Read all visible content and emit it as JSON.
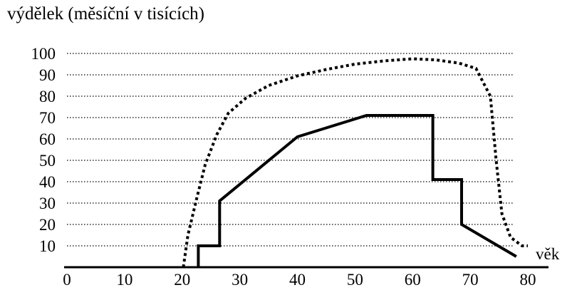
{
  "chart_data": {
    "type": "line",
    "title": "výdělek (měsíční v tisících)",
    "xlabel": "věk",
    "ylabel": "",
    "xlim": [
      0,
      80
    ],
    "ylim": [
      0,
      100
    ],
    "x_ticks": [
      "0",
      "10",
      "20",
      "30",
      "40",
      "50",
      "60",
      "70",
      "80"
    ],
    "y_ticks": [
      "10",
      "20",
      "30",
      "40",
      "50",
      "60",
      "70",
      "80",
      "90",
      "100"
    ],
    "grid": "horizontal-dotted",
    "series": [
      {
        "style": "dotted",
        "points": [
          [
            20.2,
            0
          ],
          [
            21,
            15
          ],
          [
            22.5,
            32
          ],
          [
            24,
            48
          ],
          [
            26,
            62
          ],
          [
            28,
            72
          ],
          [
            31,
            79
          ],
          [
            35,
            85
          ],
          [
            40,
            89.5
          ],
          [
            45,
            92.5
          ],
          [
            50,
            95
          ],
          [
            55,
            96.5
          ],
          [
            60,
            97.5
          ],
          [
            64,
            97
          ],
          [
            68,
            95.5
          ],
          [
            71,
            93
          ],
          [
            73.5,
            80
          ],
          [
            74.5,
            50
          ],
          [
            75.5,
            25
          ],
          [
            77,
            14
          ],
          [
            79,
            10
          ],
          [
            80,
            10
          ]
        ]
      },
      {
        "style": "solid",
        "points": [
          [
            22.8,
            0
          ],
          [
            22.8,
            10
          ],
          [
            26.5,
            10
          ],
          [
            26.5,
            31
          ],
          [
            40,
            61
          ],
          [
            52,
            71
          ],
          [
            63.5,
            71
          ],
          [
            63.5,
            41
          ],
          [
            68.5,
            41
          ],
          [
            68.5,
            20
          ],
          [
            78,
            5
          ]
        ]
      }
    ]
  }
}
